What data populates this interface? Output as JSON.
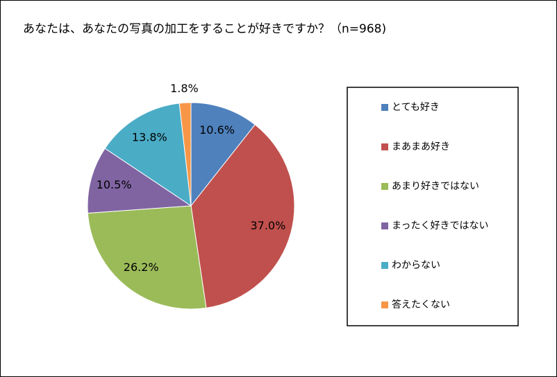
{
  "chart_data": {
    "type": "pie",
    "title": "あなたは、あなたの写真の加工をすることが好きですか？（n=968)",
    "categories": [
      "とても好き",
      "まあまあ好き",
      "あまり好きではない",
      "まったく好きではない",
      "わからない",
      "答えたくない"
    ],
    "values": [
      10.6,
      37.0,
      26.2,
      10.5,
      13.8,
      1.8
    ],
    "value_labels": [
      "10.6%",
      "37.0%",
      "26.2%",
      "10.5%",
      "13.8%",
      "1.8%"
    ],
    "colors": [
      "#4F81BD",
      "#C0504D",
      "#9BBB59",
      "#8064A2",
      "#4BACC6",
      "#F79646"
    ],
    "legend": "right"
  }
}
